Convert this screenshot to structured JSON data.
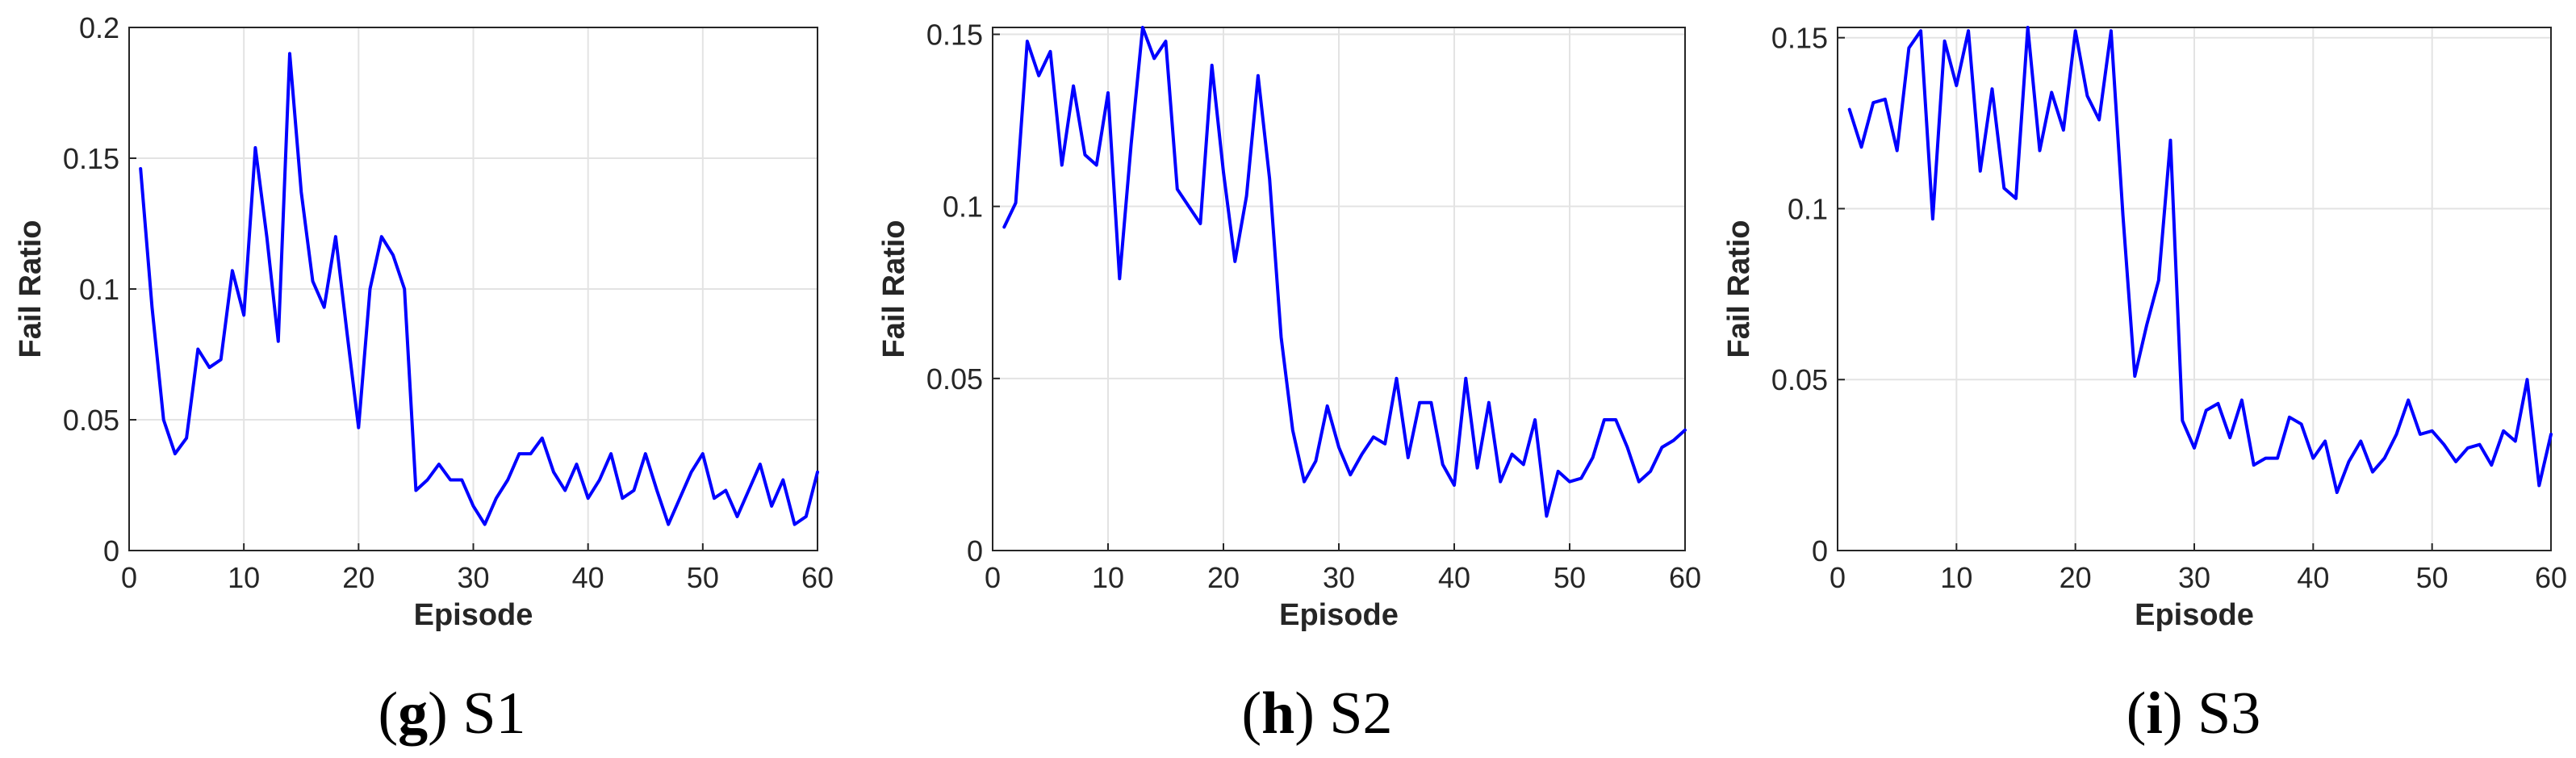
{
  "colors": {
    "series": "#0000ff",
    "axis": "#262626",
    "grid": "#e3e3e3"
  },
  "chart_data": [
    {
      "type": "line",
      "caption": {
        "letter": "g",
        "text": " S1"
      },
      "xlabel": "Episode",
      "ylabel": "Fail Ratio",
      "xlim": [
        0,
        60
      ],
      "ylim": [
        0,
        0.2
      ],
      "xticks": [
        0,
        10,
        20,
        30,
        40,
        50,
        60
      ],
      "yticks": [
        0,
        0.05,
        0.1,
        0.15,
        0.2
      ],
      "xtick_labels": [
        "0",
        "10",
        "20",
        "30",
        "40",
        "50",
        "60"
      ],
      "ytick_labels": [
        "0",
        "0.05",
        "0.1",
        "0.15",
        "0.2"
      ],
      "grid": true,
      "series": [
        {
          "x": [
            1,
            2,
            3,
            4,
            5,
            6,
            7,
            8,
            9,
            10,
            11,
            12,
            13,
            14,
            15,
            16,
            17,
            18,
            19,
            20,
            21,
            22,
            23,
            24,
            25,
            26,
            27,
            28,
            29,
            30,
            31,
            32,
            33,
            34,
            35,
            36,
            37,
            38,
            39,
            40,
            41,
            42,
            43,
            44,
            45,
            46,
            47,
            48,
            49,
            50,
            51,
            52,
            53,
            54,
            55,
            56,
            57,
            58,
            59,
            60
          ],
          "values": [
            0.146,
            0.093,
            0.05,
            0.037,
            0.043,
            0.077,
            0.07,
            0.073,
            0.107,
            0.09,
            0.154,
            0.12,
            0.08,
            0.19,
            0.137,
            0.103,
            0.093,
            0.12,
            0.083,
            0.047,
            0.1,
            0.12,
            0.113,
            0.1,
            0.023,
            0.027,
            0.033,
            0.027,
            0.027,
            0.017,
            0.01,
            0.02,
            0.027,
            0.037,
            0.037,
            0.043,
            0.03,
            0.023,
            0.033,
            0.02,
            0.027,
            0.037,
            0.02,
            0.023,
            0.037,
            0.023,
            0.01,
            0.02,
            0.03,
            0.037,
            0.02,
            0.023,
            0.013,
            0.023,
            0.033,
            0.017,
            0.027,
            0.01,
            0.013,
            0.03
          ]
        }
      ]
    },
    {
      "type": "line",
      "caption": {
        "letter": "h",
        "text": " S2"
      },
      "xlabel": "Episode",
      "ylabel": "Fail Ratio",
      "xlim": [
        0,
        60
      ],
      "ylim": [
        0,
        0.152
      ],
      "xticks": [
        0,
        10,
        20,
        30,
        40,
        50,
        60
      ],
      "yticks": [
        0,
        0.05,
        0.1,
        0.15
      ],
      "xtick_labels": [
        "0",
        "10",
        "20",
        "30",
        "40",
        "50",
        "60"
      ],
      "ytick_labels": [
        "0",
        "0.05",
        "0.1",
        "0.15"
      ],
      "grid": true,
      "series": [
        {
          "x": [
            1,
            2,
            3,
            4,
            5,
            6,
            7,
            8,
            9,
            10,
            11,
            12,
            13,
            14,
            15,
            16,
            17,
            18,
            19,
            20,
            21,
            22,
            23,
            24,
            25,
            26,
            27,
            28,
            29,
            30,
            31,
            32,
            33,
            34,
            35,
            36,
            37,
            38,
            39,
            40,
            41,
            42,
            43,
            44,
            45,
            46,
            47,
            48,
            49,
            50,
            51,
            52,
            53,
            54,
            55,
            56,
            57,
            58,
            59,
            60
          ],
          "values": [
            0.094,
            0.101,
            0.148,
            0.138,
            0.145,
            0.112,
            0.135,
            0.115,
            0.112,
            0.133,
            0.079,
            0.118,
            0.152,
            0.143,
            0.148,
            0.105,
            0.1,
            0.095,
            0.141,
            0.11,
            0.084,
            0.103,
            0.138,
            0.108,
            0.062,
            0.035,
            0.02,
            0.026,
            0.042,
            0.03,
            0.022,
            0.028,
            0.033,
            0.031,
            0.05,
            0.027,
            0.043,
            0.043,
            0.025,
            0.019,
            0.05,
            0.024,
            0.043,
            0.02,
            0.028,
            0.025,
            0.038,
            0.01,
            0.023,
            0.02,
            0.021,
            0.027,
            0.038,
            0.038,
            0.03,
            0.02,
            0.023,
            0.03,
            0.032,
            0.035
          ]
        }
      ]
    },
    {
      "type": "line",
      "caption": {
        "letter": "i",
        "text": " S3"
      },
      "xlabel": "Episode",
      "ylabel": "Fail Ratio",
      "xlim": [
        0,
        60
      ],
      "ylim": [
        0,
        0.153
      ],
      "xticks": [
        0,
        10,
        20,
        30,
        40,
        50,
        60
      ],
      "yticks": [
        0,
        0.05,
        0.1,
        0.15
      ],
      "xtick_labels": [
        "0",
        "10",
        "20",
        "30",
        "40",
        "50",
        "60"
      ],
      "ytick_labels": [
        "0",
        "0.05",
        "0.1",
        "0.15"
      ],
      "grid": true,
      "series": [
        {
          "x": [
            1,
            2,
            3,
            4,
            5,
            6,
            7,
            8,
            9,
            10,
            11,
            12,
            13,
            14,
            15,
            16,
            17,
            18,
            19,
            20,
            21,
            22,
            23,
            24,
            25,
            26,
            27,
            28,
            29,
            30,
            31,
            32,
            33,
            34,
            35,
            36,
            37,
            38,
            39,
            40,
            41,
            42,
            43,
            44,
            45,
            46,
            47,
            48,
            49,
            50,
            51,
            52,
            53,
            54,
            55,
            56,
            57,
            58,
            59,
            60
          ],
          "values": [
            0.129,
            0.118,
            0.131,
            0.132,
            0.117,
            0.147,
            0.152,
            0.097,
            0.149,
            0.136,
            0.152,
            0.111,
            0.135,
            0.106,
            0.103,
            0.153,
            0.117,
            0.134,
            0.123,
            0.152,
            0.133,
            0.126,
            0.152,
            0.098,
            0.051,
            0.066,
            0.079,
            0.12,
            0.038,
            0.03,
            0.041,
            0.043,
            0.033,
            0.044,
            0.025,
            0.027,
            0.027,
            0.039,
            0.037,
            0.027,
            0.032,
            0.017,
            0.026,
            0.032,
            0.023,
            0.027,
            0.034,
            0.044,
            0.034,
            0.035,
            0.031,
            0.026,
            0.03,
            0.031,
            0.025,
            0.035,
            0.032,
            0.05,
            0.019,
            0.034
          ]
        }
      ]
    }
  ]
}
